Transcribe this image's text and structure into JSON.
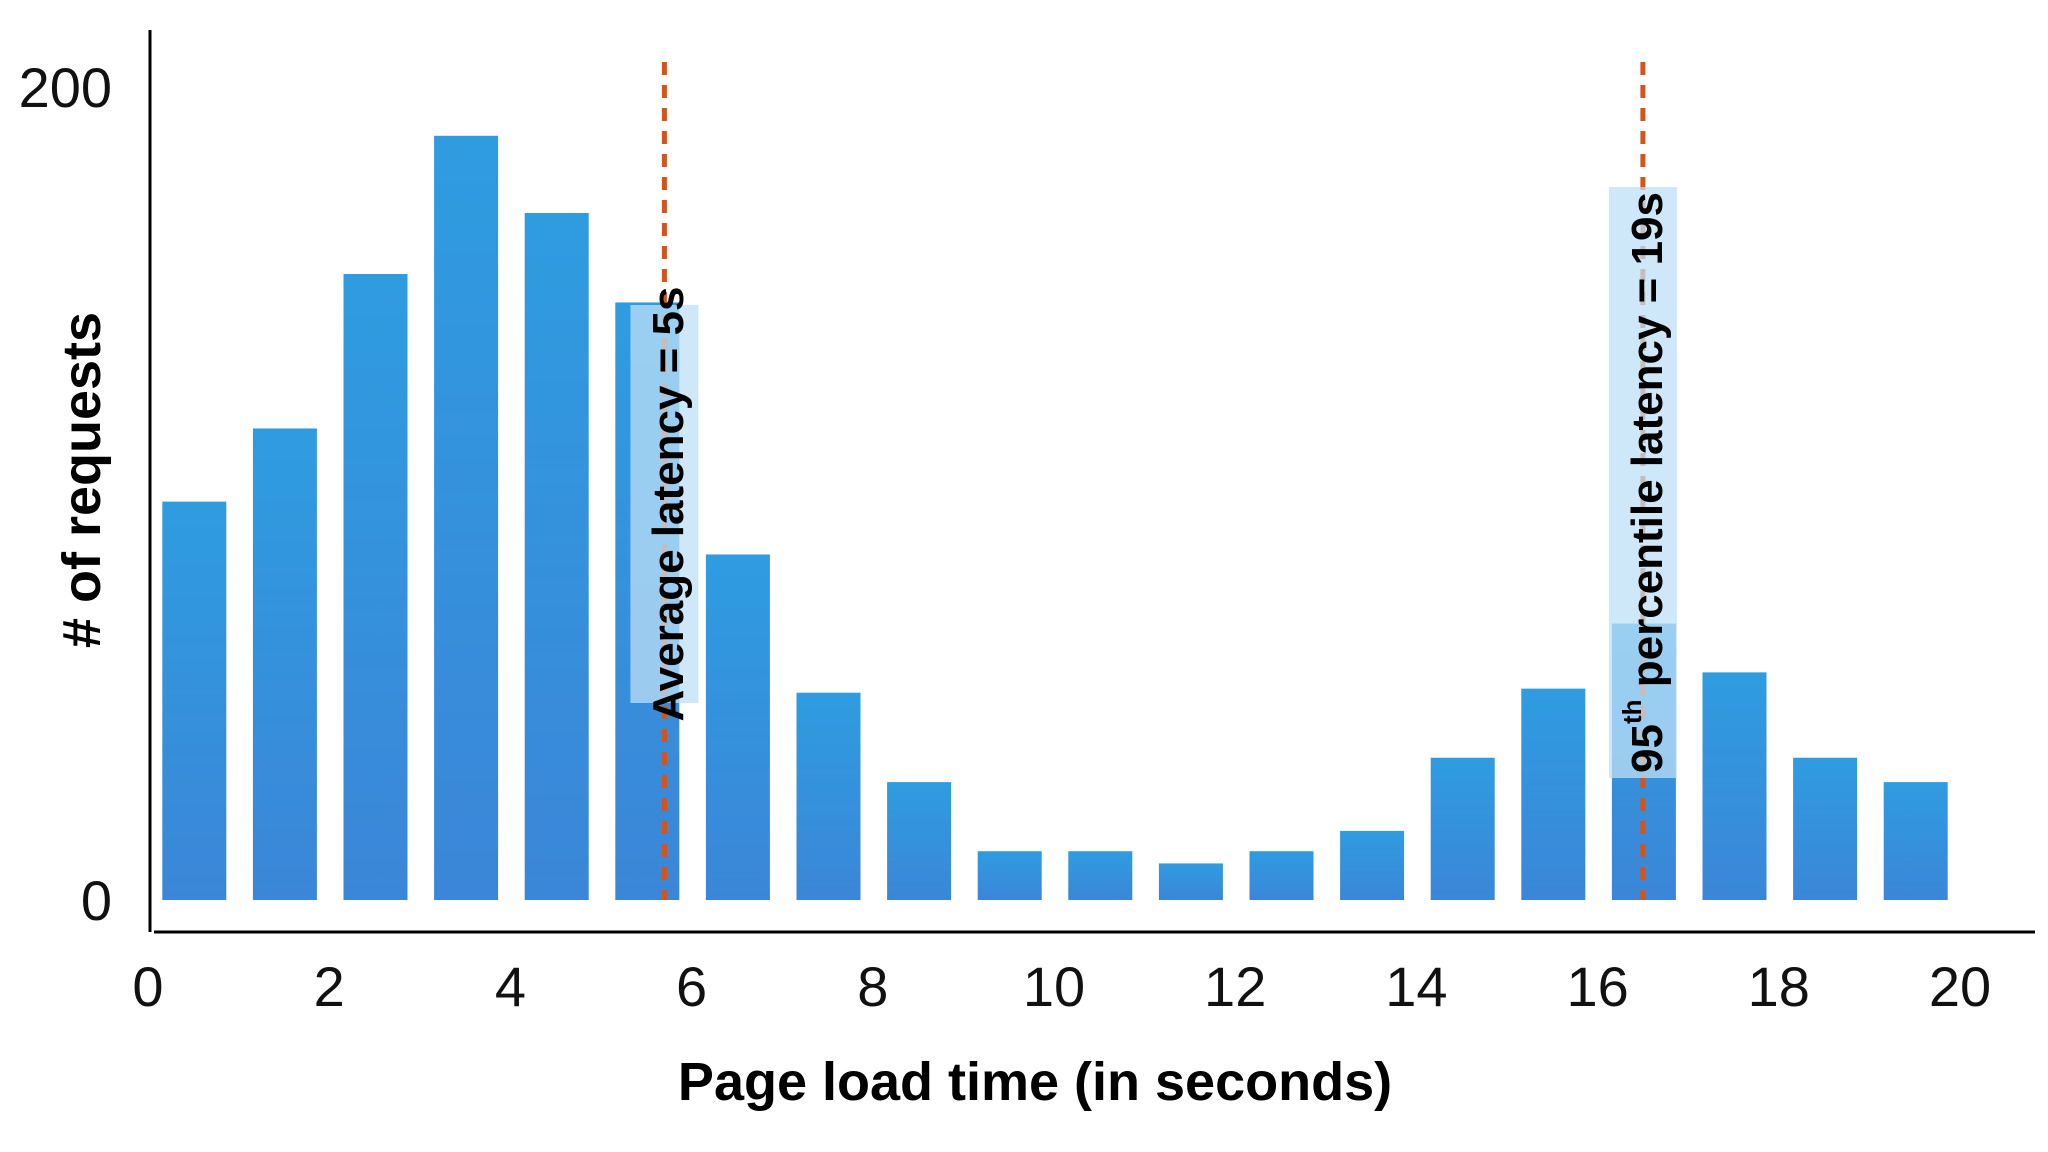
{
  "chart_data": {
    "type": "bar",
    "title": "",
    "xlabel": "Page load time (in seconds)",
    "ylabel": "# of requests",
    "x": [
      1,
      2,
      3,
      4,
      5,
      6,
      7,
      8,
      9,
      10,
      11,
      12,
      13,
      14,
      15,
      16,
      17,
      18,
      19,
      20
    ],
    "values": [
      98,
      116,
      154,
      188,
      169,
      147,
      85,
      51,
      29,
      12,
      12,
      9,
      12,
      17,
      35,
      52,
      68,
      56,
      35,
      29
    ],
    "xlim": [
      0,
      20
    ],
    "ylim": [
      0,
      200
    ],
    "x_ticks": [
      "0",
      "2",
      "4",
      "6",
      "8",
      "10",
      "12",
      "14",
      "16",
      "18",
      "20"
    ],
    "y_ticks": [
      "0",
      "200"
    ],
    "grid": false,
    "bar_color": "#3a92dc",
    "annotations": [
      {
        "x": 5.7,
        "label": "Average latency = 5s",
        "line_color": "#d4541c"
      },
      {
        "x": 16.5,
        "label_base": "95",
        "label_sup": "th",
        "label_rest": " percentile latency = 19s",
        "line_color": "#d4541c"
      }
    ]
  }
}
